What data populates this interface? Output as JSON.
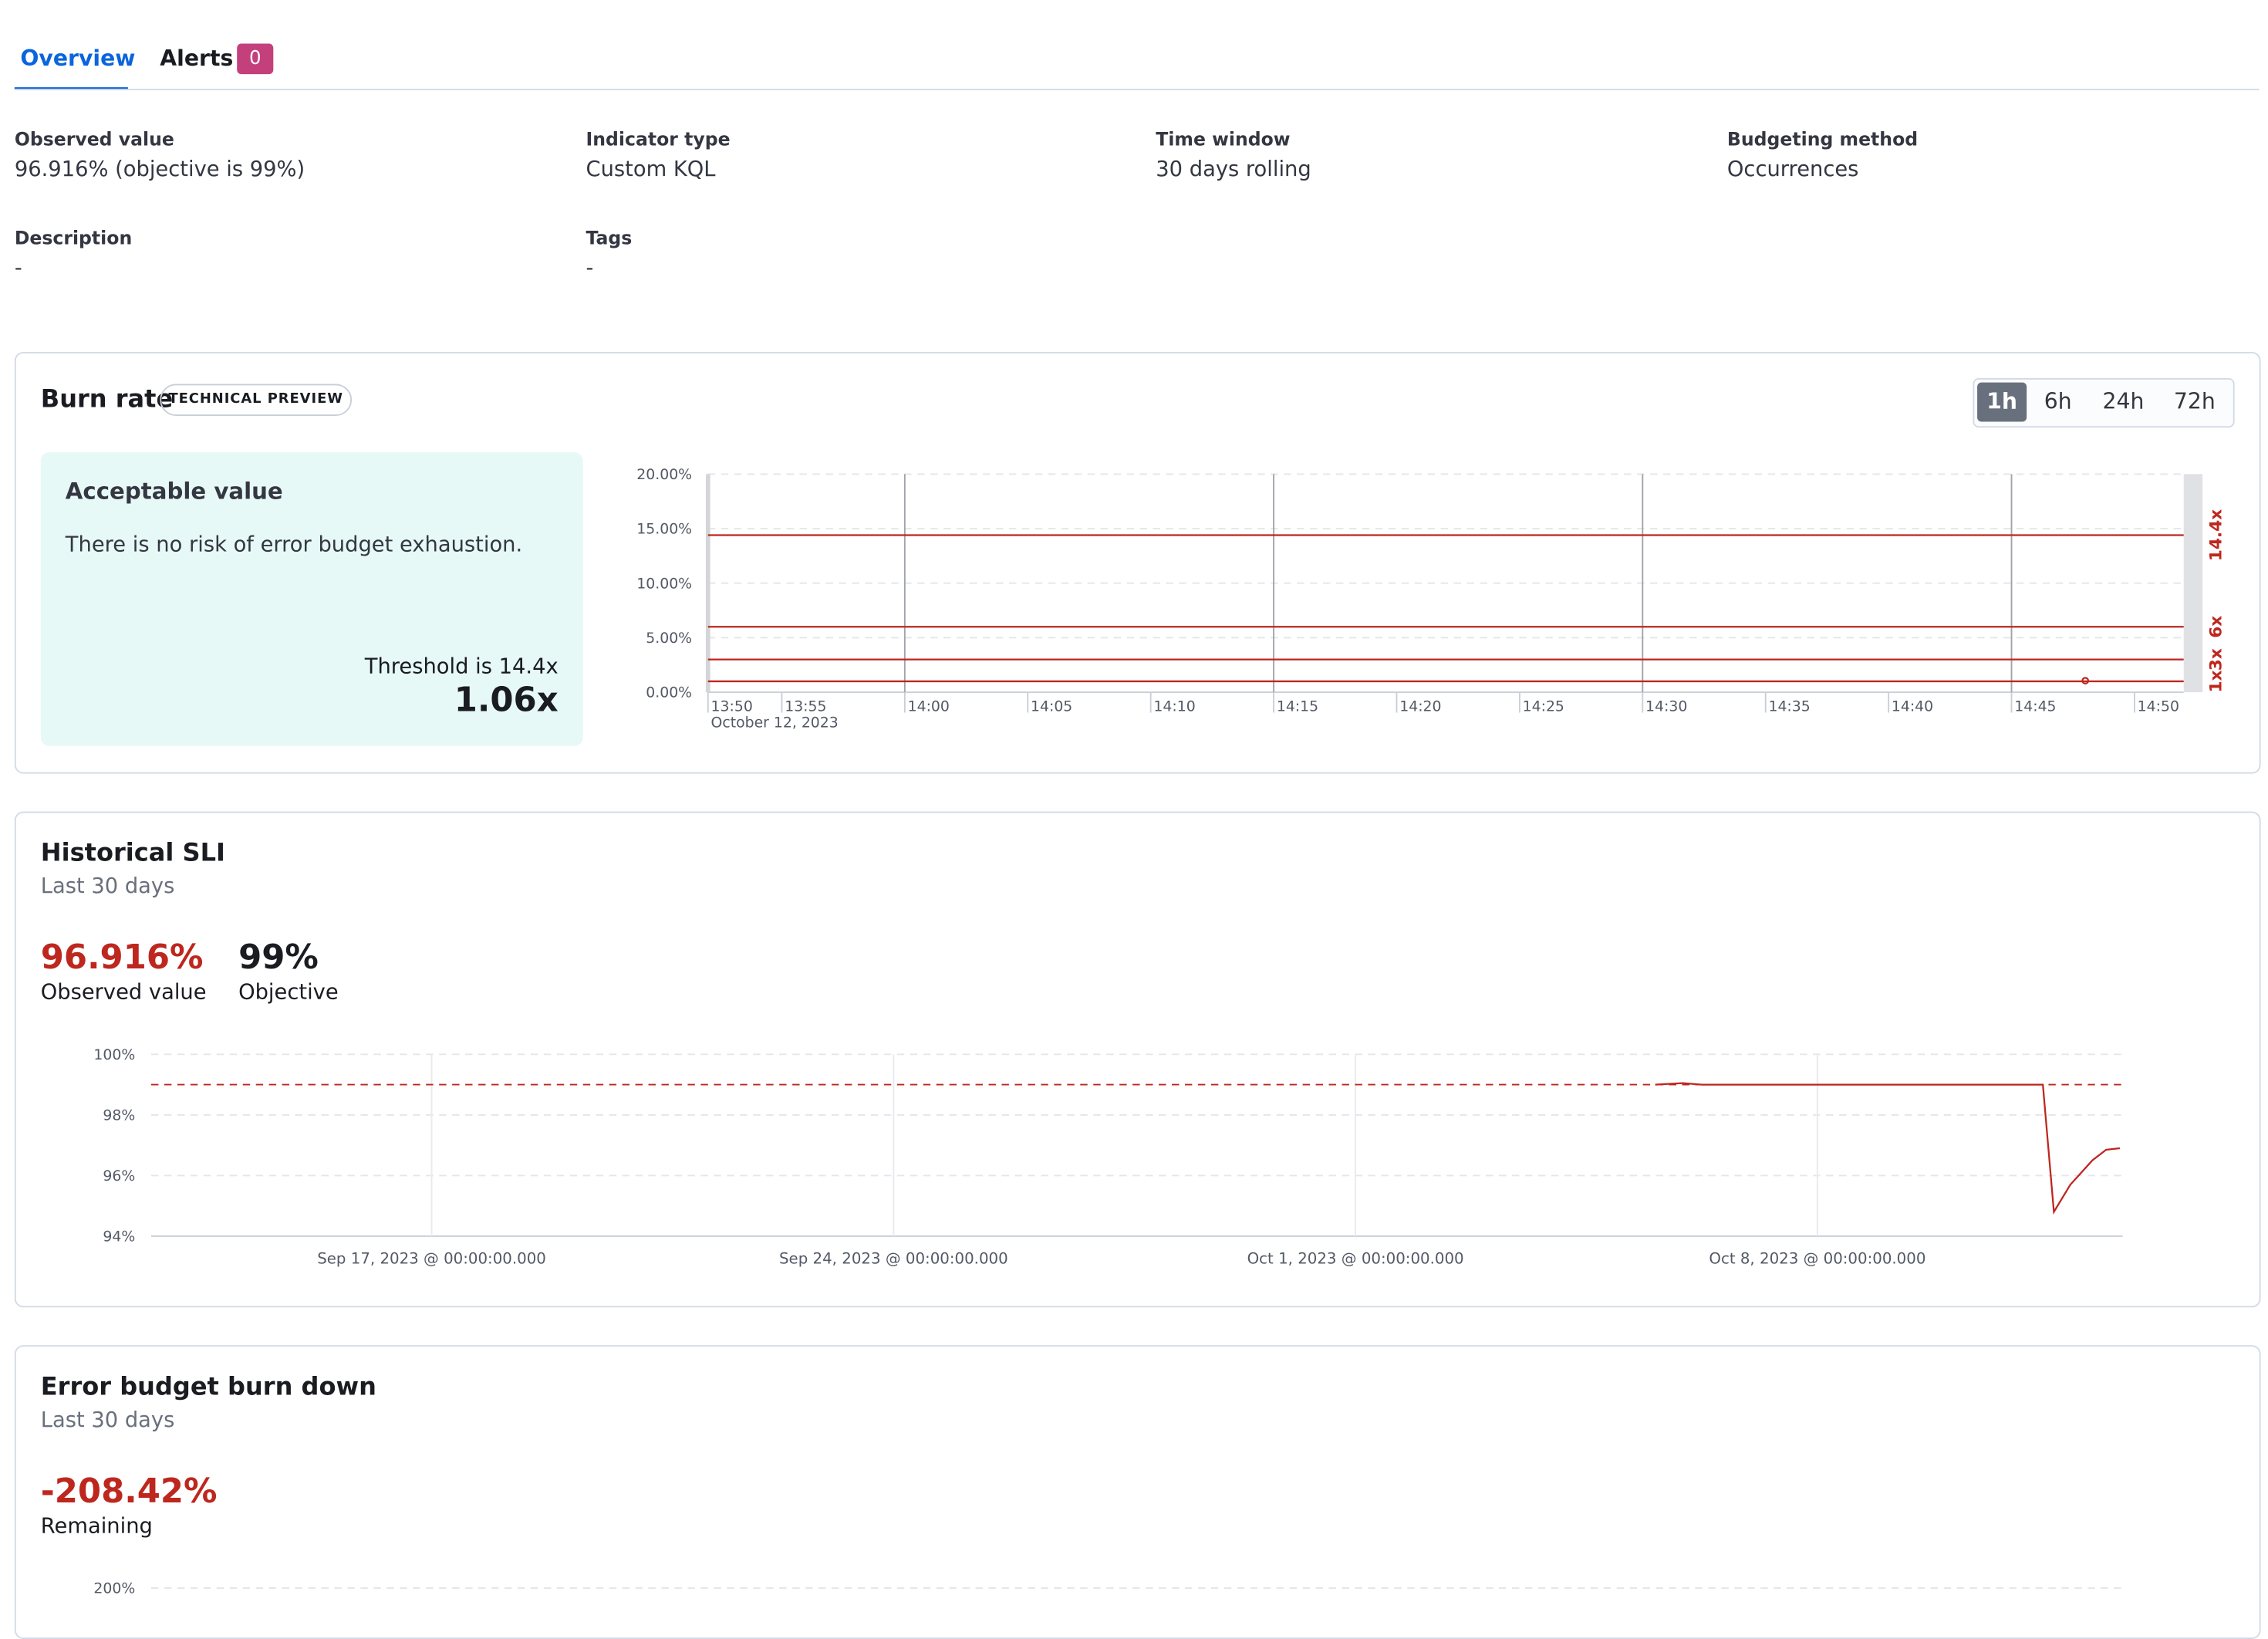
{
  "tabs": [
    {
      "label": "Overview"
    },
    {
      "label": "Alerts",
      "badge": 0
    }
  ],
  "summary": [
    {
      "label": "Observed value",
      "value": "96.916% (objective is 99%)"
    },
    {
      "label": "Indicator type",
      "value": "Custom KQL"
    },
    {
      "label": "Time window",
      "value": "30 days rolling"
    },
    {
      "label": "Budgeting method",
      "value": "Occurrences"
    },
    {
      "label": "Description",
      "value": "-"
    },
    {
      "label": "Tags",
      "value": "-"
    }
  ],
  "burn_rate": {
    "title": "Burn rate",
    "badge": "TECHNICAL PREVIEW",
    "ranges": [
      "1h",
      "6h",
      "24h",
      "72h"
    ],
    "callout": {
      "title": "Acceptable value",
      "text": "There is no risk of error budget exhaustion.",
      "threshold": "Threshold is 14.4x",
      "value": "1.06x"
    },
    "chart": {
      "type": "line",
      "xlim": [
        "13:52",
        "14:52"
      ],
      "xticks": [
        {
          "value": "13:52",
          "label": "13:50"
        },
        "13:55",
        "14:00",
        "14:05",
        "14:10",
        "14:15",
        "14:20",
        "14:25",
        "14:30",
        "14:35",
        "14:40",
        "14:45",
        "14:50"
      ],
      "x_sublabel": "October 12, 2023",
      "major_x": [
        "14:00",
        "14:15",
        "14:30",
        "14:45"
      ],
      "ylim": [
        0,
        20
      ],
      "yticks": [
        {
          "value": 0,
          "label": "0.00%"
        },
        {
          "value": 5,
          "label": "5.00%"
        },
        {
          "value": 10,
          "label": "10.00%"
        },
        {
          "value": 15,
          "label": "15.00%"
        },
        {
          "value": 20,
          "label": "20.00%"
        }
      ],
      "thresholds": [
        {
          "value": 14.4,
          "label": "14.4x"
        },
        {
          "value": 6,
          "label": "6x"
        },
        {
          "value": 3,
          "label": "3x"
        },
        {
          "value": 1,
          "label": "1x"
        }
      ],
      "color": "#bd271e",
      "series": [
        {
          "color": "#bd271e",
          "x": [
            "14:48"
          ],
          "values": [
            1.06
          ]
        }
      ]
    }
  },
  "historical_sli": {
    "title": "Historical SLI",
    "subtitle": "Last 30 days",
    "stats": [
      {
        "value": "96.916%",
        "label": "Observed value"
      },
      {
        "value": "99%",
        "label": "Objective"
      }
    ],
    "chart": {
      "type": "line",
      "xlim": [
        "2023-09-12T18:00",
        "2023-10-12T15:00"
      ],
      "xticks": [
        {
          "value": "2023-09-17T00:00",
          "label": "Sep 17, 2023 @ 00:00:00.000"
        },
        {
          "value": "2023-09-24T00:00",
          "label": "Sep 24, 2023 @ 00:00:00.000"
        },
        {
          "value": "2023-10-01T00:00",
          "label": "Oct 1, 2023 @ 00:00:00.000"
        },
        {
          "value": "2023-10-08T00:00",
          "label": "Oct 8, 2023 @ 00:00:00.000"
        }
      ],
      "ylim": [
        94,
        100
      ],
      "yticks": [
        {
          "value": 94,
          "label": "94%"
        },
        {
          "value": 96,
          "label": "96%"
        },
        {
          "value": 98,
          "label": "98%"
        },
        {
          "value": 100,
          "label": "100%"
        }
      ],
      "objective": 99,
      "series": [
        {
          "color": "#bd271e",
          "x": [
            "2023-10-05T13:00",
            "2023-10-05T23:00",
            "2023-10-06T06:00",
            "2023-10-11T10:00",
            "2023-10-11T14:00",
            "2023-10-11T20:00",
            "2023-10-12T04:00",
            "2023-10-12T09:00",
            "2023-10-12T14:00"
          ],
          "values": [
            99,
            99.05,
            99,
            99,
            94.8,
            95.7,
            96.5,
            96.85,
            96.9
          ]
        }
      ]
    }
  },
  "error_budget": {
    "title": "Error budget burn down",
    "subtitle": "Last 30 days",
    "stats": [
      {
        "value": "-208.42%",
        "label": "Remaining"
      }
    ],
    "chart": {
      "type": "line",
      "yticks": [
        {
          "value": 200,
          "label": "200%"
        }
      ]
    }
  }
}
